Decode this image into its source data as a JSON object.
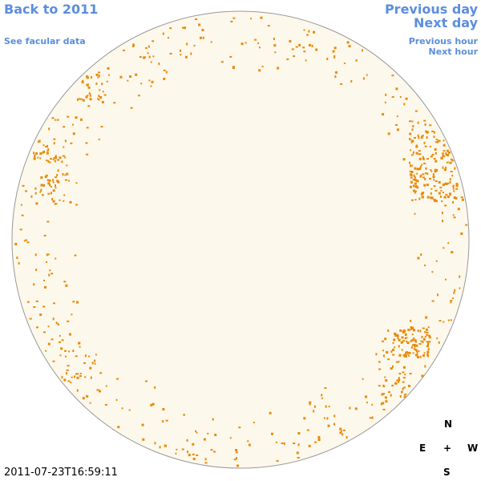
{
  "links": {
    "back_year": "Back to 2011",
    "facular": "See facular data",
    "previous_day": "Previous day",
    "next_day": "Next day",
    "previous_hour": "Previous hour",
    "next_hour": "Next hour"
  },
  "compass": {
    "north": "N",
    "center": "+",
    "east": "E",
    "west": "W",
    "south": "S"
  },
  "timestamp": "2011-07-23T16:59:11"
}
